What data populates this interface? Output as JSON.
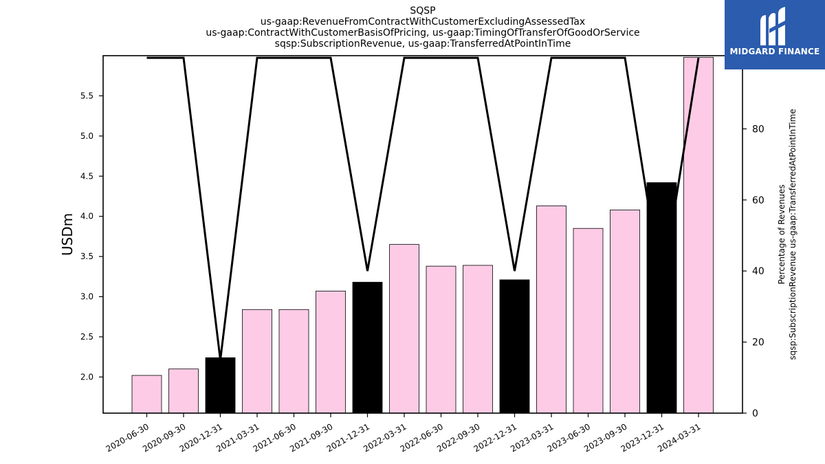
{
  "logo": {
    "text": "MIDGARD FINANCE"
  },
  "chart_data": {
    "type": "bar",
    "title_lines": [
      "SQSP",
      "us-gaap:RevenueFromContractWithCustomerExcludingAssessedTax",
      "us-gaap:ContractWithCustomerBasisOfPricing, us-gaap:TimingOfTransferOfGoodOrService",
      "sqsp:SubscriptionRevenue, us-gaap:TransferredAtPointInTime"
    ],
    "ylabel": "USDm",
    "y2label_lines": [
      "Percentage of Revenues",
      "sqsp:SubscriptionRevenue us-gaap:TransferredAtPointInTime"
    ],
    "categories": [
      "2020-06-30",
      "2020-09-30",
      "2020-12-31",
      "2021-03-31",
      "2021-06-30",
      "2021-09-30",
      "2021-12-31",
      "2022-03-31",
      "2022-06-30",
      "2022-09-30",
      "2022-12-31",
      "2023-03-31",
      "2023-06-30",
      "2023-09-30",
      "2023-12-31",
      "2024-03-31"
    ],
    "values": [
      2.02,
      2.1,
      2.24,
      2.84,
      2.84,
      3.07,
      3.18,
      3.65,
      3.38,
      3.39,
      3.21,
      4.13,
      3.85,
      4.08,
      4.42,
      5.98
    ],
    "highlight": [
      false,
      false,
      true,
      false,
      false,
      false,
      true,
      false,
      false,
      false,
      true,
      false,
      false,
      false,
      true,
      false
    ],
    "bar_color": "#fdcbe5",
    "highlight_color": "#000000",
    "ylim": [
      1.55,
      6.0
    ],
    "yticks": [
      2.0,
      2.5,
      3.0,
      3.5,
      4.0,
      4.5,
      5.0,
      5.5
    ],
    "line_series": {
      "name": "Percentage of Revenues",
      "values": [
        100,
        100,
        15,
        100,
        100,
        100,
        40,
        100,
        100,
        100,
        40,
        100,
        100,
        100,
        35,
        100
      ]
    },
    "y2lim": [
      0,
      100.6
    ],
    "y2ticks": [
      0,
      20,
      40,
      60,
      80,
      100
    ],
    "grid": false
  }
}
